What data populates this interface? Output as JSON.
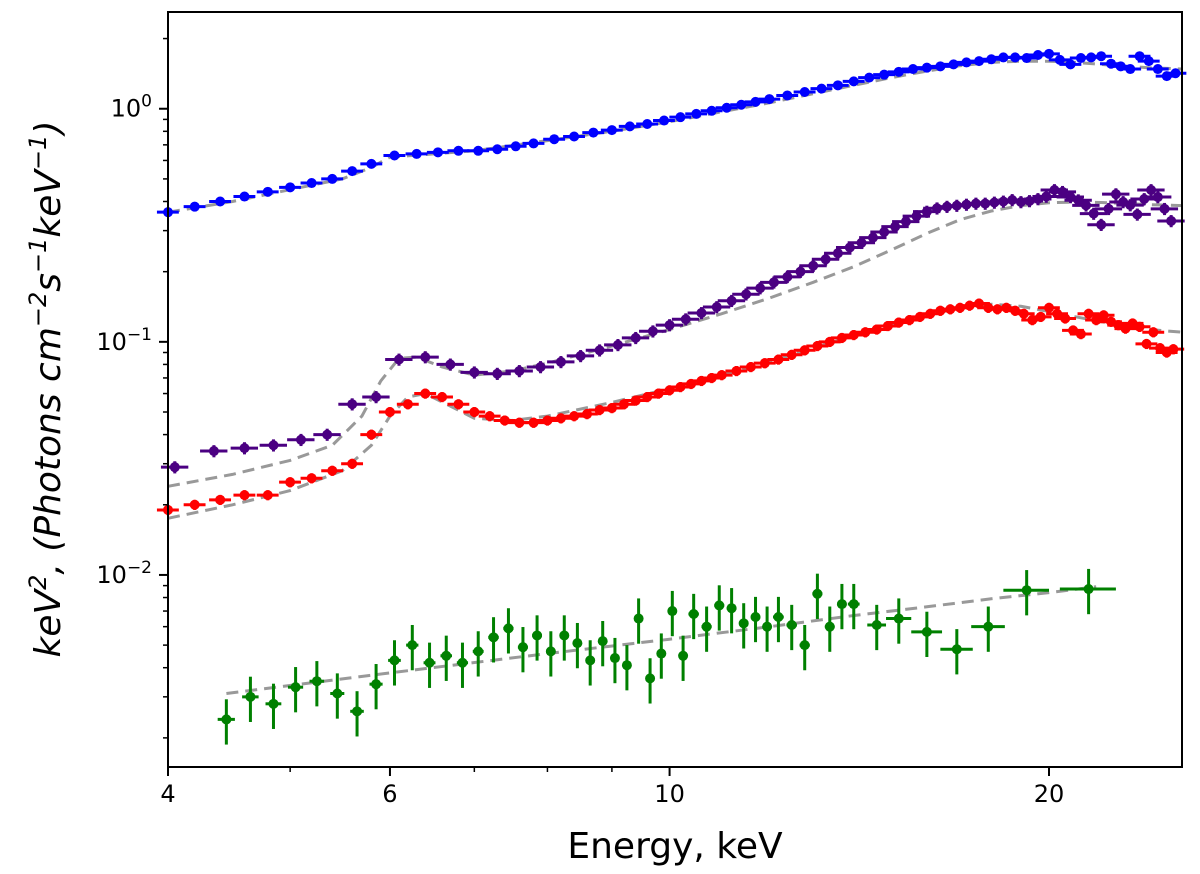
{
  "chart_data": {
    "type": "scatter",
    "title": "",
    "xlabel": "Energy, keV",
    "ylabel": {
      "parts": [
        {
          "t": "keV",
          "sup": ""
        },
        {
          "t": "",
          "sup": "2"
        },
        {
          "t": ", (Photons   cm",
          "sup": ""
        },
        {
          "t": "",
          "sup": "−2"
        },
        {
          "t": "s",
          "sup": ""
        },
        {
          "t": "",
          "sup": "−1"
        },
        {
          "t": "keV",
          "sup": ""
        },
        {
          "t": "",
          "sup": "−1"
        },
        {
          "t": ")",
          "sup": ""
        }
      ]
    },
    "xscale": "log",
    "yscale": "log",
    "xlim": [
      4.0,
      25.5
    ],
    "ylim": [
      0.0015,
      2.6
    ],
    "xticks_major": [
      {
        "value": 4,
        "label": "4"
      },
      {
        "value": 6,
        "label": "6"
      },
      {
        "value": 10,
        "label": "10"
      },
      {
        "value": 20,
        "label": "20"
      }
    ],
    "xticks_minor": [
      5,
      7,
      8,
      9
    ],
    "yticks_major": [
      {
        "value": 0.01,
        "base": "10",
        "exp": "−2"
      },
      {
        "value": 0.1,
        "base": "10",
        "exp": "−1"
      },
      {
        "value": 1,
        "base": "10",
        "exp": "0"
      }
    ],
    "grid": false,
    "legend": "none",
    "series": [
      {
        "name": "blue",
        "color": "#0000ff",
        "marker_size": 5,
        "line_width": 3,
        "x": [
          4.0,
          4.2,
          4.4,
          4.6,
          4.8,
          5.0,
          5.2,
          5.4,
          5.6,
          5.8,
          6.05,
          6.3,
          6.55,
          6.8,
          7.05,
          7.3,
          7.55,
          7.8,
          8.1,
          8.4,
          8.7,
          9.0,
          9.3,
          9.6,
          9.9,
          10.2,
          10.5,
          10.8,
          11.1,
          11.4,
          11.7,
          12.0,
          12.4,
          12.8,
          13.2,
          13.6,
          14.0,
          14.4,
          14.8,
          15.2,
          15.6,
          16.0,
          16.4,
          16.8,
          17.2,
          17.6,
          18.0,
          18.4,
          18.8,
          19.2,
          19.6,
          20.0,
          20.4,
          20.8,
          21.2,
          21.6,
          22.0,
          22.4,
          22.8,
          23.2,
          23.6,
          24.0,
          24.4,
          24.8,
          25.2
        ],
        "y": [
          0.36,
          0.38,
          0.4,
          0.42,
          0.44,
          0.46,
          0.48,
          0.5,
          0.54,
          0.58,
          0.63,
          0.64,
          0.65,
          0.66,
          0.66,
          0.67,
          0.69,
          0.71,
          0.74,
          0.76,
          0.79,
          0.81,
          0.84,
          0.86,
          0.89,
          0.92,
          0.95,
          0.98,
          1.01,
          1.04,
          1.07,
          1.1,
          1.14,
          1.18,
          1.22,
          1.26,
          1.31,
          1.36,
          1.4,
          1.44,
          1.48,
          1.5,
          1.52,
          1.55,
          1.58,
          1.6,
          1.63,
          1.66,
          1.66,
          1.65,
          1.7,
          1.72,
          1.62,
          1.55,
          1.65,
          1.66,
          1.68,
          1.56,
          1.52,
          1.48,
          1.68,
          1.6,
          1.48,
          1.38,
          1.42
        ],
        "xerr_frac": 0.02,
        "yerr_frac": 0.03
      },
      {
        "name": "purple",
        "color": "#4b0082",
        "marker_size": 5,
        "line_width": 3,
        "x": [
          4.05,
          4.35,
          4.6,
          4.85,
          5.1,
          5.35,
          5.6,
          5.85,
          6.1,
          6.4,
          6.7,
          7.0,
          7.3,
          7.6,
          7.9,
          8.2,
          8.5,
          8.8,
          9.1,
          9.4,
          9.7,
          10.0,
          10.3,
          10.6,
          10.9,
          11.2,
          11.5,
          11.8,
          12.1,
          12.4,
          12.7,
          13.0,
          13.3,
          13.6,
          13.9,
          14.2,
          14.5,
          14.8,
          15.1,
          15.4,
          15.7,
          16.0,
          16.3,
          16.6,
          16.9,
          17.2,
          17.5,
          17.8,
          18.1,
          18.4,
          18.7,
          19.0,
          19.3,
          19.6,
          19.9,
          20.2,
          20.5,
          20.8,
          21.1,
          21.4,
          21.7,
          22.0,
          22.3,
          22.6,
          22.9,
          23.2,
          23.5,
          23.8,
          24.1,
          24.4,
          24.7,
          25.0
        ],
        "y": [
          0.029,
          0.034,
          0.035,
          0.036,
          0.038,
          0.04,
          0.054,
          0.058,
          0.084,
          0.086,
          0.08,
          0.074,
          0.073,
          0.075,
          0.078,
          0.082,
          0.087,
          0.092,
          0.097,
          0.104,
          0.111,
          0.118,
          0.125,
          0.133,
          0.141,
          0.15,
          0.16,
          0.17,
          0.18,
          0.19,
          0.2,
          0.212,
          0.226,
          0.24,
          0.254,
          0.266,
          0.28,
          0.296,
          0.312,
          0.328,
          0.346,
          0.362,
          0.374,
          0.38,
          0.384,
          0.388,
          0.392,
          0.392,
          0.396,
          0.4,
          0.406,
          0.398,
          0.402,
          0.41,
          0.42,
          0.448,
          0.44,
          0.418,
          0.405,
          0.385,
          0.355,
          0.318,
          0.372,
          0.43,
          0.398,
          0.386,
          0.352,
          0.41,
          0.448,
          0.418,
          0.372,
          0.33
        ],
        "xerr_frac": 0.025,
        "yerr_frac": 0.06
      },
      {
        "name": "red",
        "color": "#ff0000",
        "marker_size": 5,
        "line_width": 3,
        "x": [
          4.0,
          4.2,
          4.4,
          4.6,
          4.8,
          5.0,
          5.2,
          5.4,
          5.6,
          5.8,
          6.0,
          6.2,
          6.4,
          6.6,
          6.8,
          7.0,
          7.2,
          7.4,
          7.6,
          7.8,
          8.0,
          8.2,
          8.4,
          8.6,
          8.8,
          9.0,
          9.2,
          9.4,
          9.6,
          9.8,
          10.0,
          10.2,
          10.4,
          10.6,
          10.8,
          11.0,
          11.3,
          11.6,
          11.9,
          12.2,
          12.5,
          12.8,
          13.1,
          13.4,
          13.7,
          14.0,
          14.3,
          14.6,
          14.9,
          15.2,
          15.5,
          15.8,
          16.1,
          16.4,
          16.7,
          17.0,
          17.3,
          17.6,
          17.9,
          18.2,
          18.5,
          18.8,
          19.1,
          19.4,
          19.7,
          20.0,
          20.3,
          20.6,
          20.9,
          21.2,
          21.5,
          21.8,
          22.1,
          22.4,
          22.7,
          23.0,
          23.3,
          23.6,
          23.9,
          24.2,
          24.5,
          24.8,
          25.1
        ],
        "y": [
          0.019,
          0.02,
          0.021,
          0.022,
          0.022,
          0.025,
          0.026,
          0.028,
          0.03,
          0.04,
          0.05,
          0.054,
          0.06,
          0.058,
          0.054,
          0.05,
          0.048,
          0.046,
          0.045,
          0.045,
          0.046,
          0.047,
          0.048,
          0.049,
          0.051,
          0.052,
          0.054,
          0.056,
          0.058,
          0.06,
          0.062,
          0.064,
          0.066,
          0.068,
          0.07,
          0.072,
          0.075,
          0.078,
          0.081,
          0.084,
          0.088,
          0.092,
          0.096,
          0.1,
          0.104,
          0.107,
          0.11,
          0.113,
          0.117,
          0.121,
          0.124,
          0.128,
          0.132,
          0.136,
          0.138,
          0.14,
          0.143,
          0.146,
          0.14,
          0.138,
          0.14,
          0.136,
          0.132,
          0.124,
          0.128,
          0.14,
          0.132,
          0.126,
          0.112,
          0.108,
          0.132,
          0.124,
          0.13,
          0.122,
          0.118,
          0.114,
          0.12,
          0.116,
          0.098,
          0.11,
          0.094,
          0.09,
          0.093
        ],
        "xerr_frac": 0.02,
        "yerr_frac": 0.05
      },
      {
        "name": "green",
        "color": "#008000",
        "marker_size": 5,
        "line_width": 3,
        "x": [
          4.45,
          4.65,
          4.85,
          5.05,
          5.25,
          5.45,
          5.65,
          5.85,
          6.05,
          6.25,
          6.45,
          6.65,
          6.85,
          7.05,
          7.25,
          7.45,
          7.65,
          7.85,
          8.05,
          8.25,
          8.45,
          8.65,
          8.85,
          9.05,
          9.25,
          9.45,
          9.65,
          9.85,
          10.05,
          10.25,
          10.45,
          10.7,
          10.95,
          11.2,
          11.45,
          11.7,
          11.95,
          12.2,
          12.5,
          12.8,
          13.1,
          13.4,
          13.7,
          14.0,
          14.6,
          15.2,
          16.0,
          16.9,
          17.9,
          19.2,
          21.5
        ],
        "y": [
          0.0024,
          0.003,
          0.0028,
          0.0033,
          0.0035,
          0.0031,
          0.0026,
          0.0034,
          0.0043,
          0.005,
          0.0042,
          0.0045,
          0.0042,
          0.0047,
          0.0054,
          0.0059,
          0.0049,
          0.0055,
          0.0047,
          0.0055,
          0.0051,
          0.0043,
          0.0052,
          0.0044,
          0.0041,
          0.0065,
          0.0036,
          0.0046,
          0.007,
          0.0045,
          0.0068,
          0.006,
          0.0074,
          0.0072,
          0.0062,
          0.0066,
          0.006,
          0.0066,
          0.0061,
          0.005,
          0.0083,
          0.006,
          0.0075,
          0.0075,
          0.0061,
          0.0065,
          0.0057,
          0.0048,
          0.006,
          0.0086,
          0.0087
        ],
        "xerr": [
          0.07,
          0.07,
          0.07,
          0.07,
          0.07,
          0.07,
          0.07,
          0.07,
          0.07,
          0.07,
          0.07,
          0.07,
          0.07,
          0.07,
          0.07,
          0.07,
          0.07,
          0.07,
          0.07,
          0.07,
          0.07,
          0.07,
          0.07,
          0.07,
          0.07,
          0.07,
          0.07,
          0.07,
          0.07,
          0.07,
          0.1,
          0.1,
          0.1,
          0.1,
          0.1,
          0.1,
          0.1,
          0.12,
          0.12,
          0.12,
          0.12,
          0.12,
          0.12,
          0.15,
          0.25,
          0.35,
          0.45,
          0.5,
          0.55,
          0.8,
          1.1
        ],
        "yerr_frac": 0.22
      }
    ],
    "models": [
      {
        "name": "blue-model",
        "color": "#999999",
        "dash": "dashed",
        "x": [
          4.0,
          4.5,
          5.0,
          5.5,
          5.8,
          6.0,
          6.5,
          7.0,
          8.0,
          9.0,
          10.0,
          11.0,
          12.0,
          13.0,
          14.0,
          15.0,
          16.0,
          17.0,
          18.0,
          19.0,
          20.0,
          21.0,
          22.0,
          23.0,
          24.0,
          25.5
        ],
        "y": [
          0.36,
          0.4,
          0.45,
          0.5,
          0.56,
          0.62,
          0.64,
          0.66,
          0.73,
          0.8,
          0.88,
          0.97,
          1.06,
          1.16,
          1.26,
          1.36,
          1.45,
          1.53,
          1.58,
          1.6,
          1.6,
          1.58,
          1.55,
          1.52,
          1.5,
          1.48
        ]
      },
      {
        "name": "purple-model",
        "color": "#999999",
        "dash": "dashed",
        "x": [
          4.0,
          4.5,
          5.0,
          5.4,
          5.7,
          5.9,
          6.1,
          6.3,
          6.6,
          7.0,
          7.5,
          8.0,
          9.0,
          10.0,
          11.0,
          12.0,
          13.0,
          14.0,
          15.0,
          16.0,
          17.0,
          18.0,
          19.0,
          20.0,
          21.0,
          22.0,
          23.0,
          24.0,
          25.5
        ],
        "y": [
          0.024,
          0.027,
          0.031,
          0.036,
          0.048,
          0.068,
          0.085,
          0.086,
          0.078,
          0.072,
          0.075,
          0.081,
          0.096,
          0.113,
          0.132,
          0.154,
          0.18,
          0.21,
          0.248,
          0.292,
          0.334,
          0.364,
          0.384,
          0.395,
          0.398,
          0.396,
          0.392,
          0.388,
          0.384
        ]
      },
      {
        "name": "red-model",
        "color": "#999999",
        "dash": "dashed",
        "x": [
          4.0,
          4.5,
          5.0,
          5.5,
          5.8,
          6.0,
          6.2,
          6.4,
          6.7,
          7.0,
          7.5,
          8.0,
          9.0,
          10.0,
          11.0,
          12.0,
          13.0,
          14.0,
          15.0,
          16.0,
          17.0,
          18.0,
          19.0,
          20.0,
          21.0,
          22.0,
          23.0,
          24.0,
          25.5
        ],
        "y": [
          0.0175,
          0.02,
          0.023,
          0.028,
          0.036,
          0.048,
          0.058,
          0.06,
          0.053,
          0.047,
          0.046,
          0.048,
          0.055,
          0.063,
          0.072,
          0.082,
          0.094,
          0.106,
          0.118,
          0.13,
          0.14,
          0.145,
          0.142,
          0.135,
          0.128,
          0.122,
          0.117,
          0.113,
          0.11
        ]
      },
      {
        "name": "green-model",
        "color": "#999999",
        "dash": "dashed",
        "x": [
          4.45,
          6.0,
          8.0,
          10.0,
          12.0,
          14.0,
          16.0,
          18.0,
          20.0,
          21.8
        ],
        "y": [
          0.0031,
          0.0038,
          0.0046,
          0.0053,
          0.006,
          0.0067,
          0.0073,
          0.0079,
          0.0084,
          0.0089
        ]
      }
    ]
  }
}
